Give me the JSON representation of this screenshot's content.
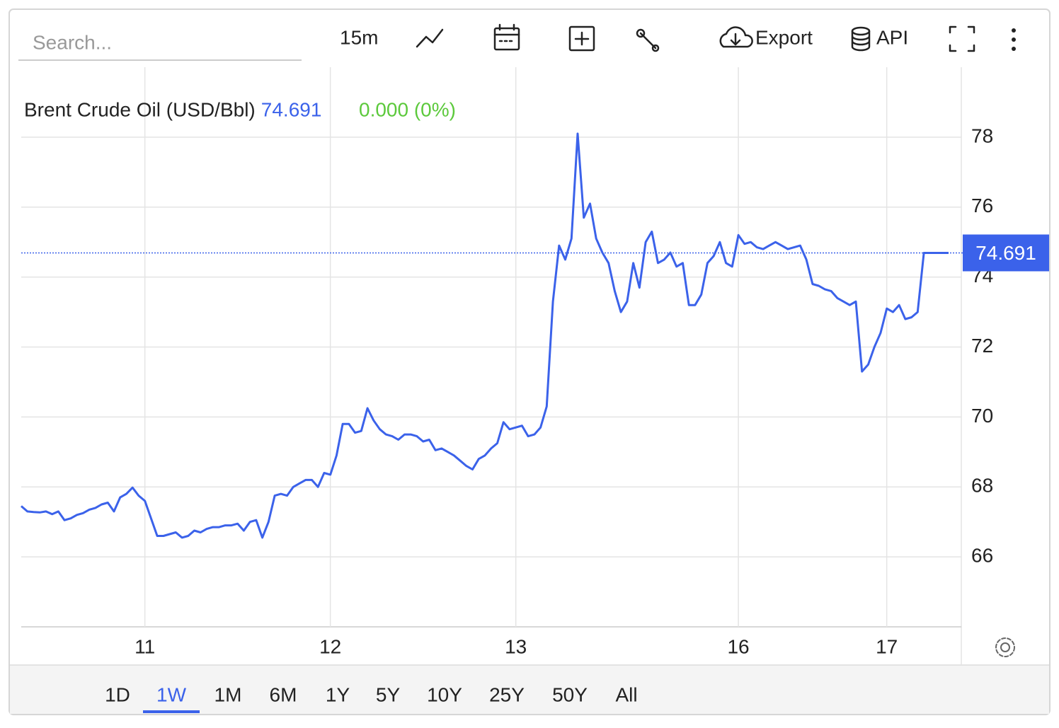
{
  "toolbar": {
    "search_placeholder": "Search...",
    "interval": "15m",
    "export": "Export",
    "api": "API"
  },
  "chart_data": {
    "type": "line",
    "title": "Brent Crude Oil (USD/Bbl)",
    "last_value": 74.691,
    "change": "0.000 (0%)",
    "color": "#3b62ea",
    "grid": true,
    "categories": [
      null,
      null,
      null,
      null,
      null,
      null,
      null,
      null,
      null,
      null,
      null,
      null,
      null,
      null,
      null,
      null,
      null,
      null,
      null,
      null,
      "11",
      null,
      null,
      null,
      null,
      null,
      null,
      null,
      null,
      null,
      null,
      null,
      null,
      null,
      null,
      null,
      null,
      null,
      null,
      null,
      null,
      null,
      null,
      null,
      null,
      null,
      null,
      null,
      null,
      null,
      "12",
      null,
      null,
      null,
      null,
      null,
      null,
      null,
      null,
      null,
      null,
      null,
      null,
      null,
      null,
      null,
      null,
      null,
      null,
      null,
      null,
      null,
      null,
      null,
      null,
      null,
      null,
      null,
      null,
      null,
      "13",
      null,
      null,
      null,
      null,
      null,
      null,
      null,
      null,
      null,
      null,
      null,
      null,
      null,
      null,
      null,
      null,
      null,
      null,
      null,
      null,
      null,
      null,
      null,
      null,
      null,
      null,
      null,
      null,
      null,
      null,
      null,
      null,
      null,
      null,
      null,
      "16",
      null,
      null,
      null,
      null,
      null,
      null,
      null,
      null,
      null,
      null,
      null,
      null,
      null,
      null,
      null,
      null,
      null,
      null,
      null,
      null,
      null,
      null,
      null,
      "17",
      null,
      null,
      null,
      null,
      null,
      null,
      null,
      null,
      null,
      null
    ],
    "values": [
      67.45,
      67.3,
      67.28,
      67.27,
      67.3,
      67.22,
      67.3,
      67.05,
      67.1,
      67.2,
      67.25,
      67.35,
      67.4,
      67.5,
      67.55,
      67.3,
      67.7,
      67.8,
      67.98,
      67.75,
      67.6,
      67.1,
      66.6,
      66.6,
      66.65,
      66.7,
      66.55,
      66.6,
      66.75,
      66.7,
      66.8,
      66.85,
      66.85,
      66.9,
      66.9,
      66.95,
      66.75,
      67.0,
      67.05,
      66.55,
      67.0,
      67.75,
      67.8,
      67.75,
      68.0,
      68.1,
      68.2,
      68.2,
      68.0,
      68.4,
      68.35,
      68.9,
      69.8,
      69.8,
      69.55,
      69.6,
      70.25,
      69.9,
      69.65,
      69.5,
      69.45,
      69.35,
      69.5,
      69.5,
      69.45,
      69.3,
      69.35,
      69.05,
      69.1,
      69.0,
      68.9,
      68.75,
      68.6,
      68.5,
      68.8,
      68.9,
      69.1,
      69.25,
      69.85,
      69.65,
      69.7,
      69.75,
      69.45,
      69.5,
      69.7,
      70.3,
      73.3,
      74.9,
      74.5,
      75.1,
      78.1,
      75.7,
      76.1,
      75.1,
      74.7,
      74.4,
      73.6,
      73.0,
      73.3,
      74.4,
      73.7,
      75.0,
      75.3,
      74.4,
      74.5,
      74.7,
      74.3,
      74.4,
      73.2,
      73.2,
      73.5,
      74.4,
      74.6,
      75.0,
      74.4,
      74.3,
      75.2,
      74.95,
      75.0,
      74.85,
      74.8,
      74.9,
      75.0,
      74.9,
      74.8,
      74.85,
      74.9,
      74.5,
      73.8,
      73.75,
      73.65,
      73.6,
      73.4,
      73.3,
      73.2,
      73.3,
      71.3,
      71.5,
      72.0,
      72.4,
      73.1,
      73.0,
      73.2,
      72.8,
      72.85,
      73.0,
      74.69,
      74.69,
      74.69,
      74.69,
      74.691
    ],
    "ylim": [
      64,
      80
    ],
    "yticks": [
      66,
      68,
      70,
      72,
      74,
      76,
      78
    ]
  },
  "range_tabs": {
    "items": [
      "1D",
      "1W",
      "1M",
      "6M",
      "1Y",
      "5Y",
      "10Y",
      "25Y",
      "50Y",
      "All"
    ],
    "active": 1
  }
}
